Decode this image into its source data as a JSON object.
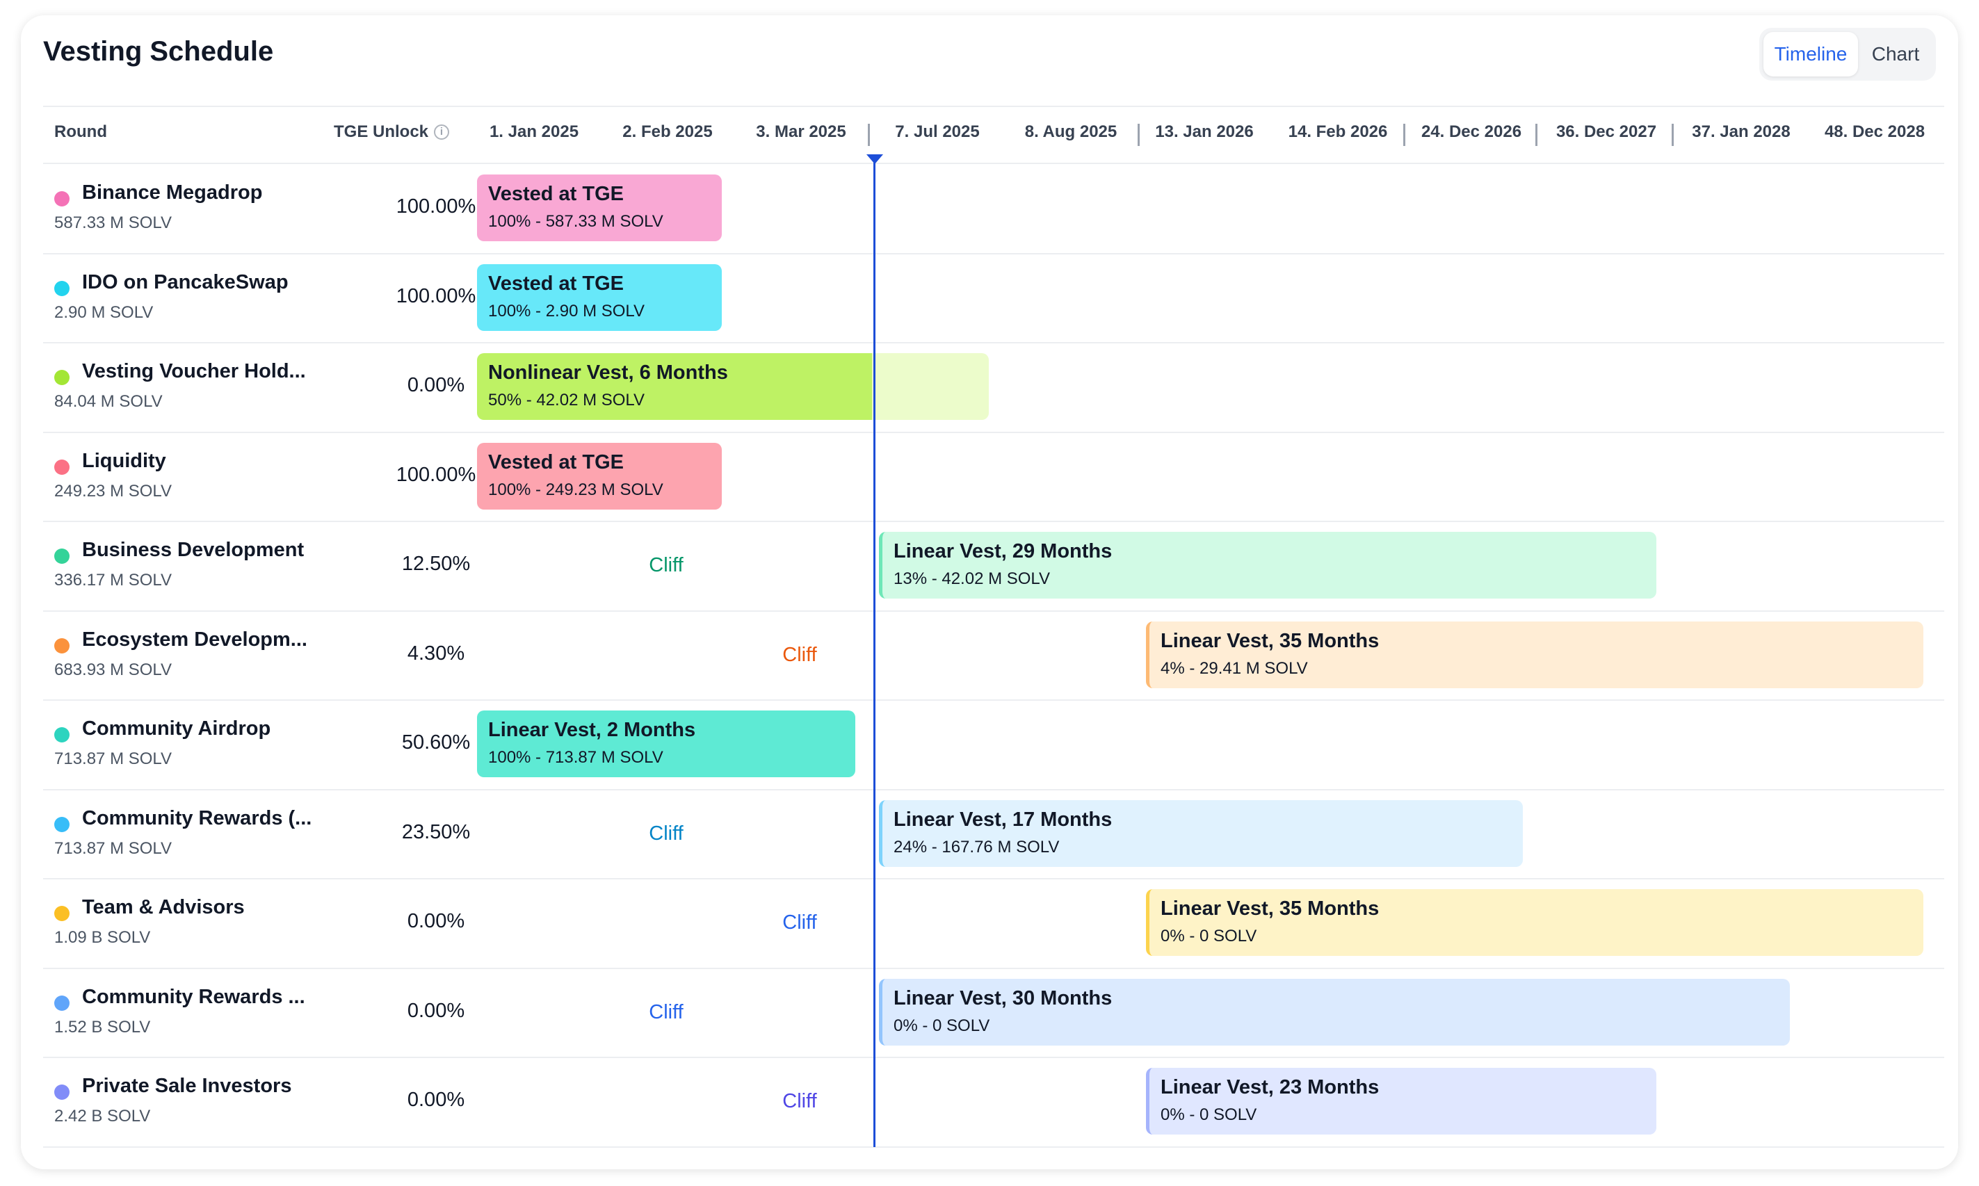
{
  "title": "Vesting Schedule",
  "view_toggle": {
    "timeline": "Timeline",
    "chart": "Chart",
    "active": "Timeline"
  },
  "headers": {
    "round": "Round",
    "tge_unlock": "TGE Unlock"
  },
  "dates": [
    "1. Jan 2025",
    "2. Feb 2025",
    "3. Mar 2025",
    "7. Jul 2025",
    "8. Aug 2025",
    "13. Jan 2026",
    "14. Feb 2026",
    "24. Dec 2026",
    "36. Dec 2027",
    "37. Jan 2028",
    "48. Dec 2028"
  ],
  "rows": [
    {
      "name": "Binance Megadrop",
      "amount": "587.33 M SOLV",
      "tge": "100.00%",
      "color": "#f472b6",
      "bar": {
        "title": "Vested at TGE",
        "sub": "100% - 587.33 M SOLV",
        "bg": "#f9a8d4"
      }
    },
    {
      "name": "IDO on PancakeSwap",
      "amount": "2.90 M SOLV",
      "tge": "100.00%",
      "color": "#22d3ee",
      "bar": {
        "title": "Vested at TGE",
        "sub": "100% - 2.90 M SOLV",
        "bg": "#67e8f9"
      }
    },
    {
      "name": "Vesting Voucher Hold...",
      "amount": "84.04 M SOLV",
      "tge": "0.00%",
      "color": "#a3e635",
      "bar": {
        "title": "Nonlinear Vest, 6 Months",
        "sub": "50% - 42.02 M SOLV",
        "bg": "#bef264",
        "bg2": "#ecfccb"
      }
    },
    {
      "name": "Liquidity",
      "amount": "249.23 M SOLV",
      "tge": "100.00%",
      "color": "#fb7185",
      "bar": {
        "title": "Vested at TGE",
        "sub": "100% - 249.23 M SOLV",
        "bg": "#fda4af"
      }
    },
    {
      "name": "Business Development",
      "amount": "336.17 M SOLV",
      "tge": "12.50%",
      "color": "#34d399",
      "cliff": {
        "label": "Cliff",
        "color": "#059669"
      },
      "bar": {
        "title": "Linear Vest, 29 Months",
        "sub": "13% - 42.02 M SOLV",
        "bg": "#d1fae5",
        "accent": "#6ee7b7"
      }
    },
    {
      "name": "Ecosystem Developm...",
      "amount": "683.93 M SOLV",
      "tge": "4.30%",
      "color": "#fb923c",
      "cliff": {
        "label": "Cliff",
        "color": "#ea580c"
      },
      "bar": {
        "title": "Linear Vest, 35 Months",
        "sub": "4% - 29.41 M SOLV",
        "bg": "#ffedd5",
        "accent": "#fdba74"
      }
    },
    {
      "name": "Community Airdrop",
      "amount": "713.87 M SOLV",
      "tge": "50.60%",
      "color": "#2dd4bf",
      "bar": {
        "title": "Linear Vest, 2 Months",
        "sub": "100% - 713.87 M SOLV",
        "bg": "#5eead4"
      }
    },
    {
      "name": "Community Rewards (...",
      "amount": "713.87 M SOLV",
      "tge": "23.50%",
      "color": "#38bdf8",
      "cliff": {
        "label": "Cliff",
        "color": "#0284c7"
      },
      "bar": {
        "title": "Linear Vest, 17 Months",
        "sub": "24% - 167.76 M SOLV",
        "bg": "#e0f2fe",
        "accent": "#7dd3fc"
      }
    },
    {
      "name": "Team & Advisors",
      "amount": "1.09 B SOLV",
      "tge": "0.00%",
      "color": "#fbbf24",
      "cliff": {
        "label": "Cliff",
        "color": "#2563eb"
      },
      "bar": {
        "title": "Linear Vest, 35 Months",
        "sub": "0% - 0 SOLV",
        "bg": "#fef3c7",
        "accent": "#fcd34d"
      }
    },
    {
      "name": "Community Rewards ...",
      "amount": "1.52 B SOLV",
      "tge": "0.00%",
      "color": "#60a5fa",
      "cliff": {
        "label": "Cliff",
        "color": "#2563eb"
      },
      "bar": {
        "title": "Linear Vest, 30 Months",
        "sub": "0% - 0 SOLV",
        "bg": "#dbeafe",
        "accent": "#93c5fd"
      }
    },
    {
      "name": "Private Sale Investors",
      "amount": "2.42 B SOLV",
      "tge": "0.00%",
      "color": "#818cf8",
      "cliff": {
        "label": "Cliff",
        "color": "#4f46e5"
      },
      "bar": {
        "title": "Linear Vest, 23 Months",
        "sub": "0% - 0 SOLV",
        "bg": "#e0e7ff",
        "accent": "#a5b4fc"
      }
    }
  ]
}
